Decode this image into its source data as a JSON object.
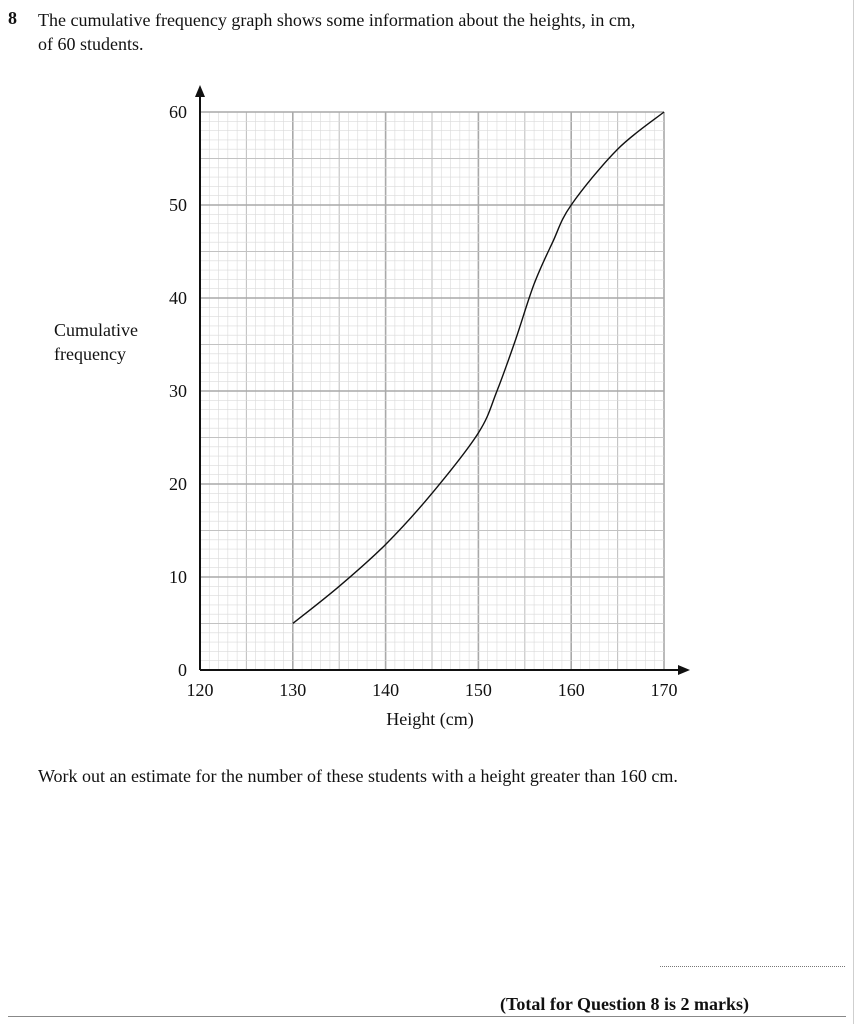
{
  "question": {
    "number": "8",
    "text_line1": "The cumulative frequency graph shows some information about the heights, in cm,",
    "text_line2": "of 60 students."
  },
  "task": "Work out an estimate for the number of these students with a height greater than 160 cm.",
  "total": "(Total for Question 8 is 2 marks)",
  "chart_data": {
    "type": "line",
    "xlabel": "Height (cm)",
    "ylabel_line1": "Cumulative",
    "ylabel_line2": "frequency",
    "xlim": [
      120,
      170
    ],
    "ylim": [
      0,
      60
    ],
    "x_ticks": [
      120,
      130,
      140,
      150,
      160,
      170
    ],
    "y_ticks": [
      0,
      10,
      20,
      30,
      40,
      50,
      60
    ],
    "grid": true,
    "series": [
      {
        "x": [
          130,
          135,
          140,
          145,
          150,
          152,
          154,
          156,
          158,
          160,
          165,
          170
        ],
        "y": [
          5,
          9,
          13.5,
          19,
          25.5,
          30,
          35.5,
          41.5,
          46,
          50,
          56,
          60
        ]
      }
    ]
  }
}
